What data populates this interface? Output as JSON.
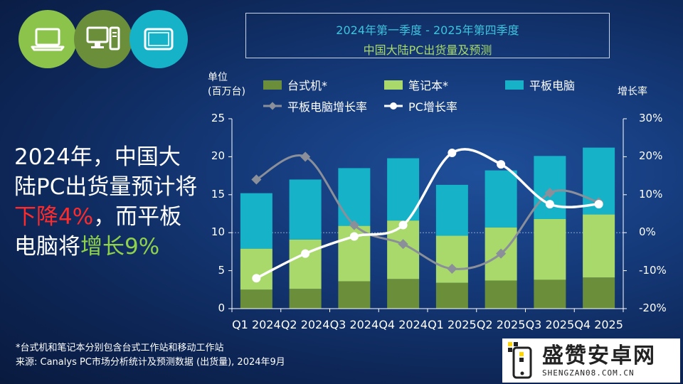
{
  "title_line1": "2024年第一季度 - 2025年第四季度",
  "title_line2": "中国大陆PC出货量及预测",
  "headline": {
    "part1": "2024年，中国大陆PC出货量预计将",
    "decline": "下降4%",
    "part2": "，而平板电脑将",
    "growth": "增长9%"
  },
  "left_unit_line1": "单位",
  "left_unit_line2": "(百万台)",
  "right_unit": "增长率",
  "footnote1": "*台式机和笔记本分别包含台式工作站和移动工作站",
  "footnote2": "来源: Canalys PC市场分析统计及预测数据 (出货量), 2024年9月",
  "logo_text": "盛赞安卓网",
  "logo_sub": "SHENGZAN08.COM.CN",
  "icons": [
    "laptop-icon",
    "desktop-icon",
    "tablet-icon"
  ],
  "colors": {
    "desktop": "#6a8e3a",
    "notebook": "#a8d96a",
    "tablet": "#16b2c8",
    "tablet_growth": "#8a8f99",
    "pc_growth": "#ffffff"
  },
  "chart_data": {
    "type": "bar",
    "stacked": true,
    "categories": [
      "Q1 2024",
      "Q2 2024",
      "Q3 2024",
      "Q4 2024",
      "Q1 2025",
      "Q2 2025",
      "Q3 2025",
      "Q4 2025"
    ],
    "series": [
      {
        "name": "台式机*",
        "values": [
          2.5,
          2.6,
          3.6,
          3.9,
          3.4,
          3.7,
          3.8,
          4.1
        ]
      },
      {
        "name": "笔记本*",
        "values": [
          5.4,
          6.5,
          7.3,
          7.7,
          6.2,
          7.0,
          8.0,
          8.3
        ]
      },
      {
        "name": "平板电脑",
        "values": [
          7.3,
          7.9,
          7.6,
          8.2,
          6.7,
          7.5,
          8.3,
          8.8
        ]
      }
    ],
    "line_series": [
      {
        "name": "平板电脑增长率",
        "values": [
          14,
          20,
          2,
          -3,
          -9.5,
          -5.5,
          10.5,
          8
        ]
      },
      {
        "name": "PC增长率",
        "values": [
          -12,
          -5.5,
          -1,
          2,
          21,
          18,
          7.5,
          7.5
        ]
      }
    ],
    "ylim": [
      0,
      25
    ],
    "yticks": [
      "0",
      "5",
      "10",
      "15",
      "20",
      "25"
    ],
    "y2lim": [
      -20,
      30
    ],
    "y2ticks": [
      "-20%",
      "-10%",
      "0%",
      "10%",
      "20%",
      "30%"
    ],
    "legend_position": "top"
  }
}
